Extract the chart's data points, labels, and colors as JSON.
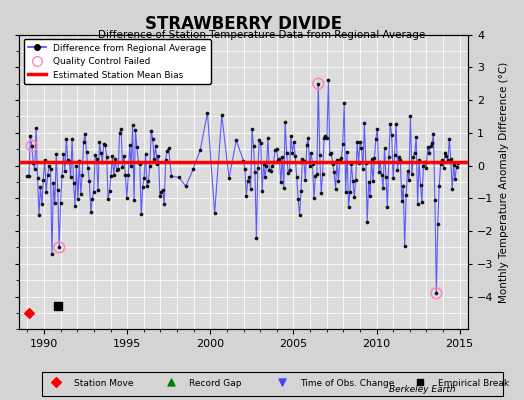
{
  "title": "STRAWBERRY DIVIDE",
  "subtitle": "Difference of Station Temperature Data from Regional Average",
  "ylabel": "Monthly Temperature Anomaly Difference (°C)",
  "xlabel_ticks": [
    1990,
    1995,
    2000,
    2005,
    2010,
    2015
  ],
  "ylim": [
    -5,
    4
  ],
  "xlim": [
    1988.5,
    2015.5
  ],
  "yticks": [
    -4,
    -3,
    -2,
    -1,
    0,
    1,
    2,
    3,
    4
  ],
  "mean_bias": 0.1,
  "mean_bias_start": 1988.5,
  "mean_bias_end": 2015.5,
  "background_color": "#e8e8e8",
  "plot_bg_color": "#dcdcdc",
  "line_color": "#4444ff",
  "dot_color": "#111111",
  "bias_color": "#ff0000",
  "qc_color": "#ff88bb",
  "watermark": "Berkeley Earth",
  "station_move_x": 1989.2,
  "station_move_y": -4.5,
  "empirical_break_x": 1990.8,
  "empirical_break_y": -4.3,
  "seed": 42,
  "n_points": 300
}
